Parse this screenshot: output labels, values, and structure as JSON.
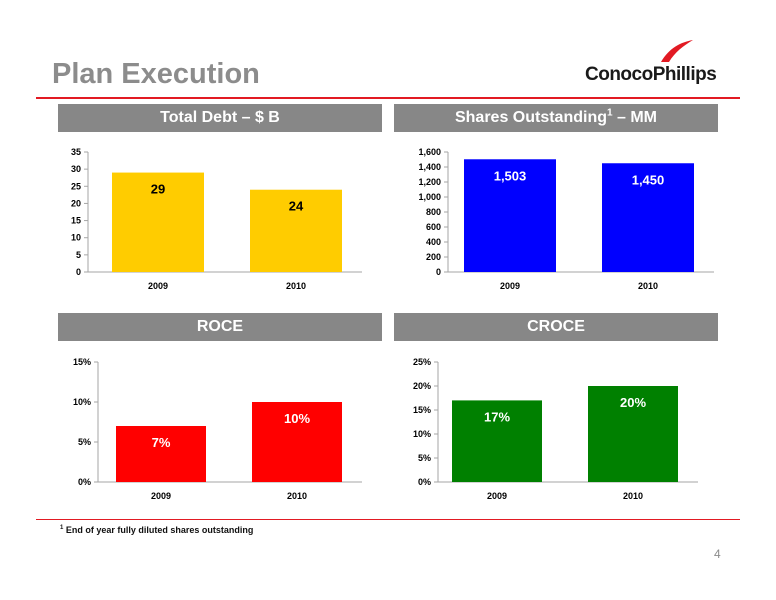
{
  "title": "Plan Execution",
  "logo": {
    "text": "ConocoPhillips",
    "mark_color": "#e21a23"
  },
  "colors": {
    "rule": "#e21a23",
    "header_bg": "#878787",
    "axis": "#a6a6a6"
  },
  "panels": [
    {
      "header": "Total Debt – $ B",
      "header_sup": ""
    },
    {
      "header": "Shares Outstanding",
      "header_sup": "1",
      "header_suffix": " – MM"
    },
    {
      "header": "ROCE",
      "header_sup": ""
    },
    {
      "header": "CROCE",
      "header_sup": ""
    }
  ],
  "footnote": {
    "marker": "1",
    "text": " End of year fully diluted shares outstanding"
  },
  "page_number": "4",
  "chart_data": [
    {
      "type": "bar",
      "categories": [
        "2009",
        "2010"
      ],
      "values": [
        29,
        24
      ],
      "data_labels": [
        "29",
        "24"
      ],
      "label_color": "#000000",
      "color": "#ffcc00",
      "ylim": [
        0,
        35
      ],
      "yticks": [
        0,
        5,
        10,
        15,
        20,
        25,
        30,
        35
      ],
      "ytick_labels": [
        "0",
        "5",
        "10",
        "15",
        "20",
        "25",
        "30",
        "35"
      ],
      "grid": false
    },
    {
      "type": "bar",
      "categories": [
        "2009",
        "2010"
      ],
      "values": [
        1503,
        1450
      ],
      "data_labels": [
        "1,503",
        "1,450"
      ],
      "label_color": "#ffffff",
      "color": "#0000ff",
      "ylim": [
        0,
        1600
      ],
      "yticks": [
        0,
        200,
        400,
        600,
        800,
        1000,
        1200,
        1400,
        1600
      ],
      "ytick_labels": [
        "0",
        "200",
        "400",
        "600",
        "800",
        "1,000",
        "1,200",
        "1,400",
        "1,600"
      ],
      "grid": false
    },
    {
      "type": "bar",
      "categories": [
        "2009",
        "2010"
      ],
      "values": [
        7,
        10
      ],
      "data_labels": [
        "7%",
        "10%"
      ],
      "label_color": "#ffffff",
      "color": "#ff0000",
      "ylim": [
        0,
        15
      ],
      "yticks": [
        0,
        5,
        10,
        15
      ],
      "ytick_labels": [
        "0%",
        "5%",
        "10%",
        "15%"
      ],
      "grid": false
    },
    {
      "type": "bar",
      "categories": [
        "2009",
        "2010"
      ],
      "values": [
        17,
        20
      ],
      "data_labels": [
        "17%",
        "20%"
      ],
      "label_color": "#ffffff",
      "color": "#008000",
      "ylim": [
        0,
        25
      ],
      "yticks": [
        0,
        5,
        10,
        15,
        20,
        25
      ],
      "ytick_labels": [
        "0%",
        "5%",
        "10%",
        "15%",
        "20%",
        "25%"
      ],
      "grid": false
    }
  ]
}
